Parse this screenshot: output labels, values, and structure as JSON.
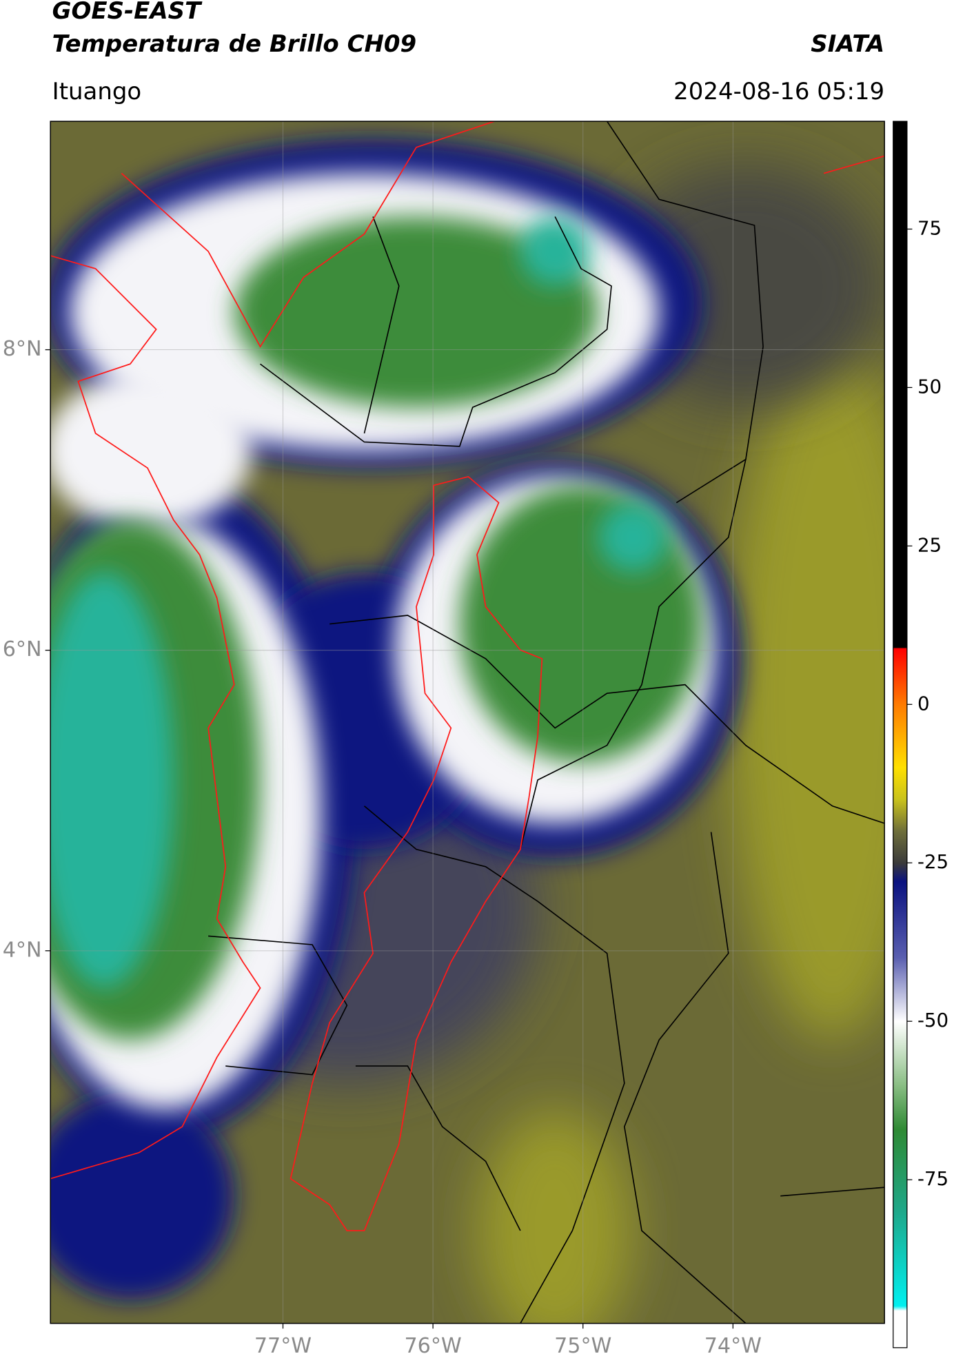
{
  "header": {
    "satellite": "GOES-EAST",
    "product": "Temperatura de Brillo CH09",
    "agency": "SIATA",
    "region": "Ituango",
    "datetime": "2024-08-16 05:19"
  },
  "chart_data": {
    "type": "map",
    "xlim": [
      -78.55,
      -72.99
    ],
    "ylim": [
      1.52,
      9.52
    ],
    "xticks": [
      {
        "value": -77,
        "label": "77°W"
      },
      {
        "value": -76,
        "label": "76°W"
      },
      {
        "value": -75,
        "label": "75°W"
      },
      {
        "value": -74,
        "label": "74°W"
      }
    ],
    "yticks": [
      {
        "value": 4,
        "label": "4°N"
      },
      {
        "value": 6,
        "label": "6°N"
      },
      {
        "value": 8,
        "label": "8°N"
      }
    ],
    "grid": true,
    "colorbar": {
      "lim": [
        -101.5,
        92
      ],
      "ticks": [
        75,
        50,
        25,
        0,
        -25,
        -50,
        -75
      ]
    }
  }
}
